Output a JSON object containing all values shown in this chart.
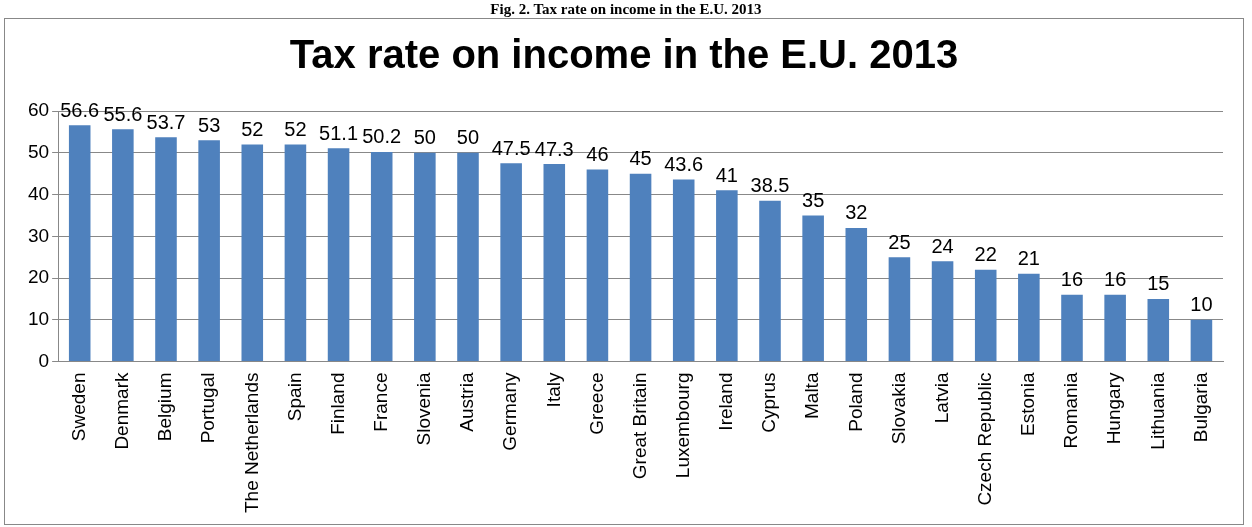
{
  "chart_data": {
    "type": "bar",
    "title": "Tax rate on income in the E.U. 2013",
    "annotations": [
      "Fig. 2. Tax rate on income in the E.U. 2013"
    ],
    "categories": [
      "Sweden",
      "Denmark",
      "Belgium",
      "Portugal",
      "The Netherlands",
      "Spain",
      "Finland",
      "France",
      "Slovenia",
      "Austria",
      "Germany",
      "Italy",
      "Greece",
      "Great Britain",
      "Luxembourg",
      "Ireland",
      "Cyprus",
      "Malta",
      "Poland",
      "Slovakia",
      "Latvia",
      "Czech Republic",
      "Estonia",
      "Romania",
      "Hungary",
      "Lithuania",
      "Bulgaria"
    ],
    "values": [
      56.6,
      55.6,
      53.7,
      53,
      52,
      52,
      51.1,
      50.2,
      50,
      50,
      47.5,
      47.3,
      46,
      45,
      43.6,
      41,
      38.5,
      35,
      32,
      25,
      24,
      22,
      21,
      16,
      16,
      15,
      10
    ],
    "color": "#4f81bd",
    "ylim": [
      0,
      60
    ],
    "yticks": [
      0,
      10,
      20,
      30,
      40,
      50,
      60
    ],
    "grid": "y",
    "legend": false,
    "data_labels": true
  }
}
